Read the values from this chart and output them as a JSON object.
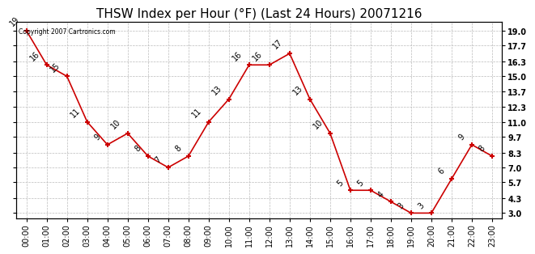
{
  "title": "THSW Index per Hour (°F) (Last 24 Hours) 20071216",
  "copyright": "Copyright 2007 Cartronics.com",
  "hours": [
    "00:00",
    "01:00",
    "02:00",
    "03:00",
    "04:00",
    "05:00",
    "06:00",
    "07:00",
    "08:00",
    "09:00",
    "10:00",
    "11:00",
    "12:00",
    "13:00",
    "14:00",
    "15:00",
    "16:00",
    "17:00",
    "18:00",
    "19:00",
    "20:00",
    "21:00",
    "22:00",
    "23:00"
  ],
  "values": [
    19,
    16,
    15,
    11,
    9,
    10,
    8,
    7,
    8,
    11,
    13,
    16,
    16,
    17,
    13,
    10,
    5,
    5,
    4,
    3,
    3,
    6,
    9,
    8
  ],
  "line_color": "#cc0000",
  "marker_color": "#cc0000",
  "bg_color": "#ffffff",
  "plot_bg_color": "#ffffff",
  "grid_color": "#bbbbbb",
  "yticks": [
    3.0,
    4.3,
    5.7,
    7.0,
    8.3,
    9.7,
    11.0,
    12.3,
    13.7,
    15.0,
    16.3,
    17.7,
    19.0
  ],
  "ylim": [
    2.5,
    19.8
  ],
  "title_fontsize": 11,
  "label_fontsize": 7,
  "annotation_fontsize": 7
}
